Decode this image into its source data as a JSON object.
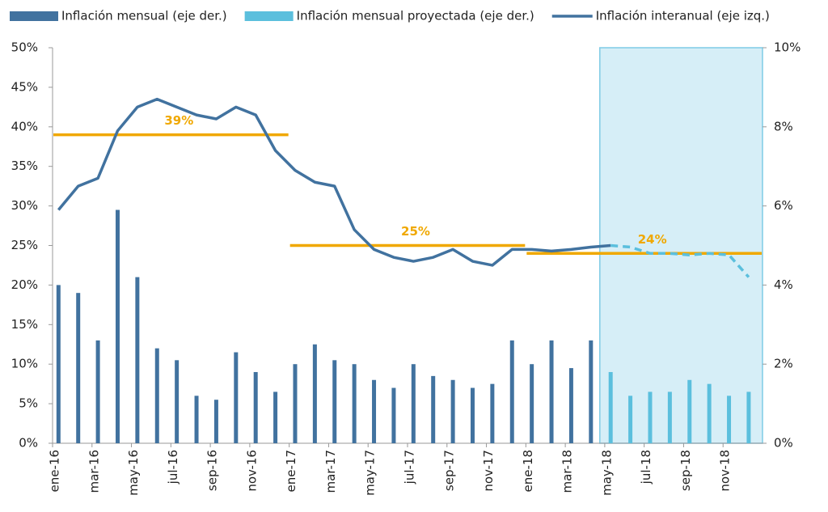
{
  "chart_data": {
    "type": "bar",
    "categories": [
      "ene-16",
      null,
      "mar-16",
      null,
      "may-16",
      null,
      "jul-16",
      null,
      "sep-16",
      null,
      "nov-16",
      null,
      "ene-17",
      null,
      "mar-17",
      null,
      "may-17",
      null,
      "jul-17",
      null,
      "sep-17",
      null,
      "nov-17",
      null,
      "ene-18",
      null,
      "mar-18",
      null,
      "may-18",
      null,
      "jul-18",
      null,
      "sep-18",
      null,
      "nov-18",
      null
    ],
    "series": [
      {
        "name": "Inflación mensual (eje der.)",
        "type": "bar",
        "axis": "y2",
        "color": "#41729f",
        "values": [
          4.0,
          3.8,
          2.6,
          5.9,
          4.2,
          2.4,
          2.1,
          1.2,
          1.1,
          2.3,
          1.8,
          1.3,
          2.0,
          2.5,
          2.1,
          2.0,
          1.6,
          1.4,
          2.0,
          1.7,
          1.6,
          1.4,
          1.5,
          2.6,
          2.0,
          2.6,
          1.9,
          2.6,
          null,
          null,
          null,
          null,
          null,
          null,
          null,
          null
        ]
      },
      {
        "name": "Inflación mensual proyectada (eje der.)",
        "type": "bar",
        "axis": "y2",
        "color": "#5bbfdd",
        "values": [
          null,
          null,
          null,
          null,
          null,
          null,
          null,
          null,
          null,
          null,
          null,
          null,
          null,
          null,
          null,
          null,
          null,
          null,
          null,
          null,
          null,
          null,
          null,
          null,
          null,
          null,
          null,
          null,
          1.8,
          1.2,
          1.3,
          1.3,
          1.6,
          1.5,
          1.2,
          1.3
        ]
      },
      {
        "name": "Inflación interanual (eje izq.)",
        "type": "line",
        "color": "#41729f",
        "values": [
          29.5,
          32.5,
          33.5,
          39.5,
          42.5,
          43.5,
          42.5,
          41.5,
          41,
          42.5,
          41.5,
          37,
          34.5,
          33,
          32.5,
          27,
          24.5,
          23.5,
          23,
          23.5,
          24.5,
          23,
          22.5,
          24.5,
          24.5,
          24.3,
          24.5,
          24.8,
          25,
          null,
          null,
          null,
          null,
          null,
          null,
          null
        ]
      },
      {
        "type": "line",
        "dashed": true,
        "color": "#5bbfdd",
        "values": [
          null,
          null,
          null,
          null,
          null,
          null,
          null,
          null,
          null,
          null,
          null,
          null,
          null,
          null,
          null,
          null,
          null,
          null,
          null,
          null,
          null,
          null,
          null,
          null,
          null,
          null,
          null,
          null,
          25,
          24.8,
          24,
          24,
          23.8,
          24,
          23.8,
          21
        ]
      }
    ],
    "averages": {
      "values": [
        39,
        25,
        24
      ],
      "value_labels": [
        "39%",
        "25%",
        "24%"
      ],
      "color": "#f0a800"
    },
    "ylim": [
      0,
      50
    ],
    "yticks": [
      {
        "value": 0,
        "label": "0%"
      },
      {
        "value": 5,
        "label": "5%"
      },
      {
        "value": 10,
        "label": "10%"
      },
      {
        "value": 15,
        "label": "15%"
      },
      {
        "value": 20,
        "label": "20%"
      },
      {
        "value": 25,
        "label": "25%"
      },
      {
        "value": 30,
        "label": "30%"
      },
      {
        "value": 35,
        "label": "35%"
      },
      {
        "value": 40,
        "label": "40%"
      },
      {
        "value": 45,
        "label": "45%"
      },
      {
        "value": 50,
        "label": "50%"
      }
    ],
    "y2lim": [
      0,
      10
    ],
    "y2ticks": [
      {
        "value": 0,
        "label": "0%"
      },
      {
        "value": 2,
        "label": "2%"
      },
      {
        "value": 4,
        "label": "4%"
      },
      {
        "value": 6,
        "label": "6%"
      },
      {
        "value": 8,
        "label": "8%"
      },
      {
        "value": 10,
        "label": "10%"
      }
    ],
    "grid": false
  }
}
